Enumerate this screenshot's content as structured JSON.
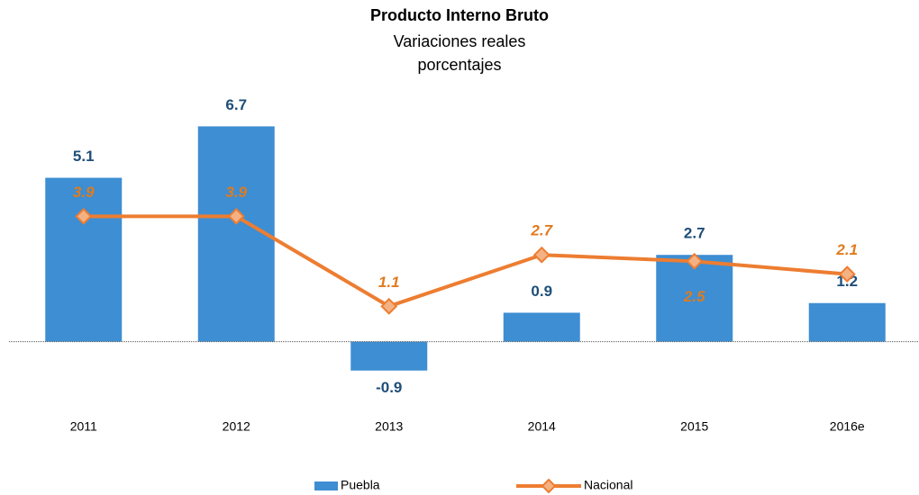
{
  "chart_data": {
    "type": "bar_line",
    "title": "Producto Interno Bruto",
    "subtitle": [
      "Variaciones reales",
      "porcentajes"
    ],
    "categories": [
      "2011",
      "2012",
      "2013",
      "2014",
      "2015",
      "2016e"
    ],
    "series": [
      {
        "name": "Puebla",
        "type": "bar",
        "color": "#3d8ed3",
        "label_color": "#1f4e79",
        "values": [
          5.1,
          6.7,
          -0.9,
          0.9,
          2.7,
          1.2
        ]
      },
      {
        "name": "Nacional",
        "type": "line",
        "color": "#ed7d31",
        "marker_fill": "#f4b183",
        "label_color": "#e07b1e",
        "values": [
          3.9,
          3.9,
          1.1,
          2.7,
          2.5,
          2.1
        ]
      }
    ],
    "ylim": [
      -2,
      8
    ],
    "legend": "bottom"
  }
}
